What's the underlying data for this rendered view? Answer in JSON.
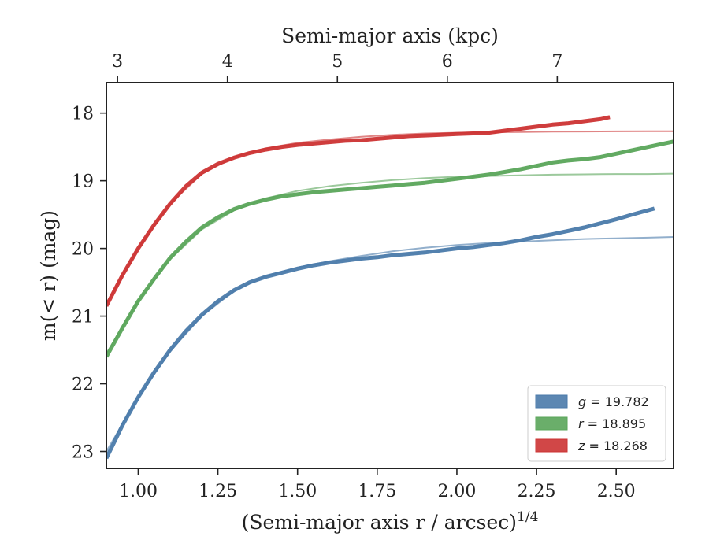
{
  "chart_data": {
    "type": "line",
    "title": "",
    "xlabel": "(Semi-major axis r / arcsec)",
    "xlabel_exponent": "1/4",
    "ylabel": "m(< r) (mag)",
    "top_xlabel": "Semi-major axis (kpc)",
    "xlim": [
      0.9,
      2.68
    ],
    "ylim": [
      23.25,
      17.55
    ],
    "y_inverted": true,
    "grid": false,
    "legend_position": "lower-right",
    "x_ticks": [
      "1.00",
      "1.25",
      "1.50",
      "1.75",
      "2.00",
      "2.25",
      "2.50"
    ],
    "x_tick_values": [
      1.0,
      1.25,
      1.5,
      1.75,
      2.0,
      2.25,
      2.5
    ],
    "y_ticks": [
      "18",
      "19",
      "20",
      "21",
      "22",
      "23"
    ],
    "y_tick_values": [
      18,
      19,
      20,
      21,
      22,
      23
    ],
    "top_x_ticks": [
      "3",
      "4",
      "5",
      "6",
      "7"
    ],
    "top_x_tick_values": [
      3,
      4,
      5,
      6,
      7
    ],
    "top_x_tick_positions_in_bottom_units": [
      0.935,
      1.28,
      1.625,
      1.97,
      2.315
    ],
    "series": [
      {
        "name": "g = 19.782",
        "legend_symbol": "g",
        "legend_value": "19.782",
        "color": "#4a7aaa",
        "profile_x": [
          0.9,
          0.95,
          1.0,
          1.05,
          1.1,
          1.15,
          1.2,
          1.25,
          1.3,
          1.35,
          1.4,
          1.45,
          1.5,
          1.55,
          1.6,
          1.65,
          1.7,
          1.75,
          1.8,
          1.85,
          1.9,
          1.95,
          2.0,
          2.05,
          2.1,
          2.15,
          2.2,
          2.25,
          2.3,
          2.35,
          2.4,
          2.45,
          2.5,
          2.55,
          2.62
        ],
        "profile_y": [
          23.1,
          22.62,
          22.2,
          21.83,
          21.5,
          21.22,
          20.98,
          20.78,
          20.62,
          20.5,
          20.42,
          20.36,
          20.3,
          20.25,
          20.21,
          20.18,
          20.15,
          20.13,
          20.1,
          20.08,
          20.06,
          20.03,
          20.0,
          19.98,
          19.95,
          19.92,
          19.88,
          19.83,
          19.79,
          19.74,
          19.69,
          19.63,
          19.57,
          19.5,
          19.41
        ],
        "model_x": [
          0.9,
          1.0,
          1.1,
          1.2,
          1.3,
          1.4,
          1.5,
          1.6,
          1.7,
          1.8,
          1.9,
          2.0,
          2.1,
          2.2,
          2.3,
          2.4,
          2.5,
          2.6,
          2.68
        ],
        "model_y": [
          23.0,
          22.2,
          21.52,
          21.0,
          20.63,
          20.41,
          20.28,
          20.19,
          20.11,
          20.04,
          19.99,
          19.95,
          19.92,
          19.9,
          19.88,
          19.86,
          19.85,
          19.84,
          19.83
        ]
      },
      {
        "name": "r = 18.895",
        "legend_symbol": "r",
        "legend_value": "18.895",
        "color": "#5aa55a",
        "profile_x": [
          0.9,
          0.95,
          1.0,
          1.05,
          1.1,
          1.15,
          1.2,
          1.25,
          1.3,
          1.35,
          1.4,
          1.45,
          1.5,
          1.55,
          1.6,
          1.65,
          1.7,
          1.75,
          1.8,
          1.85,
          1.9,
          1.95,
          2.0,
          2.05,
          2.1,
          2.15,
          2.2,
          2.25,
          2.3,
          2.35,
          2.4,
          2.45,
          2.5,
          2.55,
          2.6,
          2.68
        ],
        "profile_y": [
          21.6,
          21.18,
          20.78,
          20.45,
          20.14,
          19.9,
          19.69,
          19.54,
          19.42,
          19.34,
          19.28,
          19.23,
          19.2,
          19.17,
          19.15,
          19.13,
          19.11,
          19.09,
          19.07,
          19.05,
          19.03,
          19.0,
          18.97,
          18.94,
          18.91,
          18.87,
          18.83,
          18.78,
          18.73,
          18.7,
          18.68,
          18.65,
          18.6,
          18.55,
          18.5,
          18.42
        ],
        "model_x": [
          0.9,
          1.0,
          1.1,
          1.2,
          1.3,
          1.4,
          1.5,
          1.6,
          1.7,
          1.8,
          1.9,
          2.0,
          2.1,
          2.2,
          2.3,
          2.4,
          2.5,
          2.6,
          2.68
        ],
        "model_y": [
          21.55,
          20.78,
          20.16,
          19.72,
          19.44,
          19.26,
          19.15,
          19.08,
          19.03,
          18.99,
          18.96,
          18.94,
          18.93,
          18.92,
          18.91,
          18.905,
          18.9,
          18.9,
          18.895
        ]
      },
      {
        "name": "z = 18.268",
        "legend_symbol": "z",
        "legend_value": "18.268",
        "color": "#cc3333",
        "profile_x": [
          0.9,
          0.95,
          1.0,
          1.05,
          1.1,
          1.15,
          1.2,
          1.25,
          1.3,
          1.35,
          1.4,
          1.45,
          1.5,
          1.55,
          1.6,
          1.65,
          1.7,
          1.75,
          1.8,
          1.85,
          1.9,
          1.95,
          2.0,
          2.05,
          2.1,
          2.15,
          2.2,
          2.25,
          2.3,
          2.35,
          2.4,
          2.45,
          2.48
        ],
        "profile_y": [
          20.85,
          20.4,
          20.0,
          19.65,
          19.34,
          19.08,
          18.88,
          18.75,
          18.66,
          18.59,
          18.54,
          18.5,
          18.47,
          18.45,
          18.43,
          18.41,
          18.4,
          18.38,
          18.36,
          18.34,
          18.33,
          18.32,
          18.31,
          18.3,
          18.29,
          18.26,
          18.23,
          18.2,
          18.17,
          18.15,
          18.12,
          18.09,
          18.06
        ],
        "model_x": [
          0.9,
          1.0,
          1.1,
          1.2,
          1.3,
          1.4,
          1.5,
          1.6,
          1.7,
          1.8,
          1.9,
          2.0,
          2.1,
          2.2,
          2.3,
          2.4,
          2.5,
          2.6,
          2.68
        ],
        "model_y": [
          20.82,
          20.0,
          19.34,
          18.9,
          18.65,
          18.52,
          18.44,
          18.39,
          18.35,
          18.32,
          18.3,
          18.29,
          18.285,
          18.28,
          18.275,
          18.272,
          18.27,
          18.268,
          18.268
        ]
      }
    ]
  }
}
